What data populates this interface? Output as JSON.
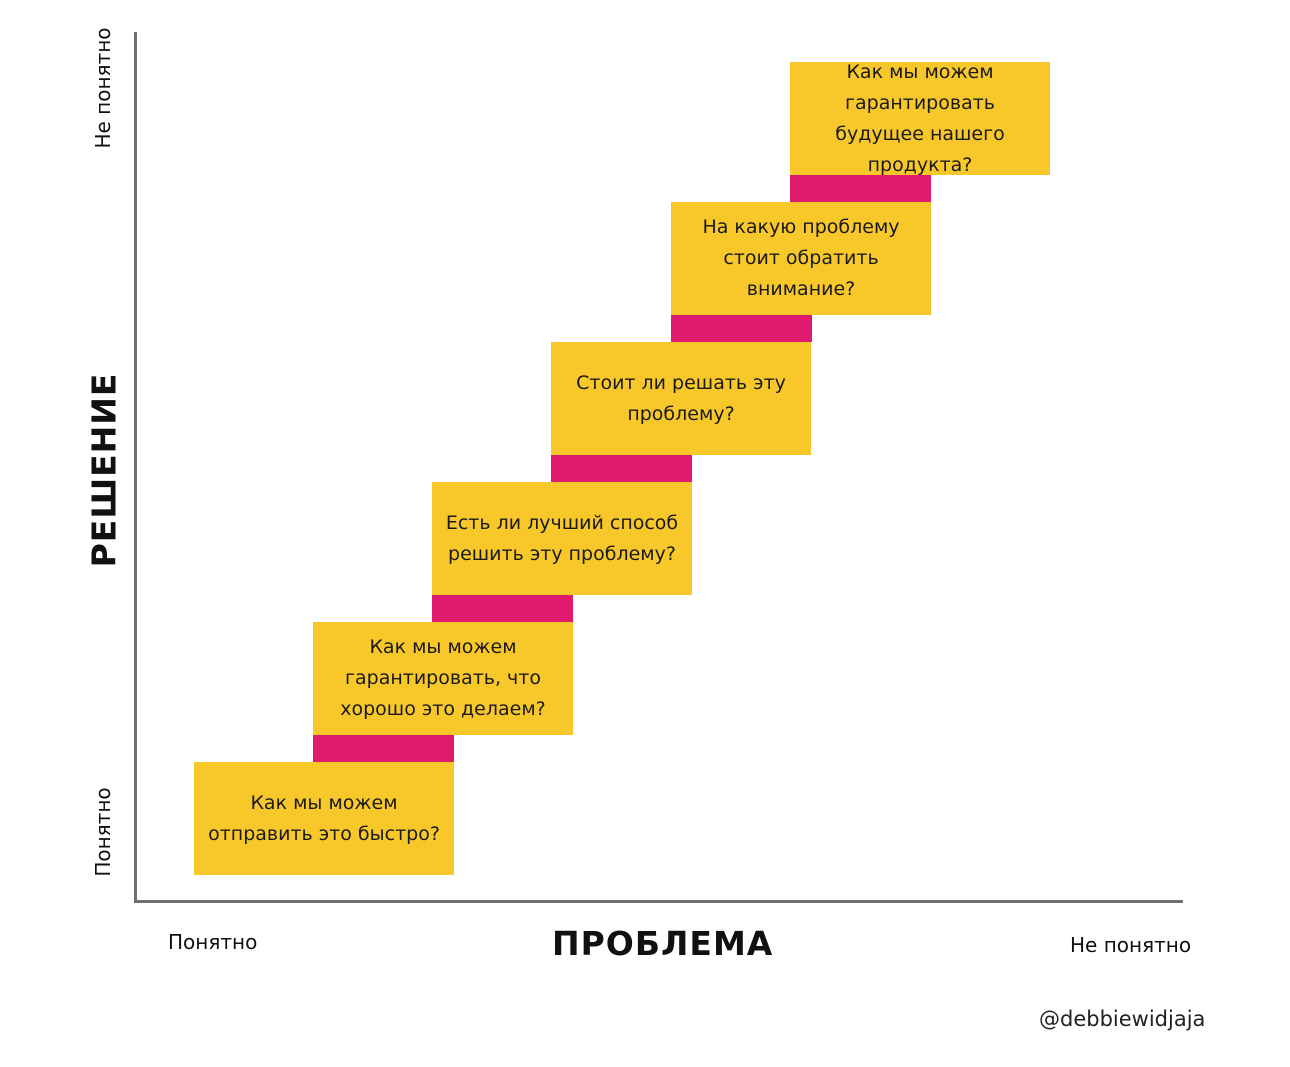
{
  "axes": {
    "y_title": "РЕШЕНИЕ",
    "y_high": "Не понятно",
    "y_low": "Понятно",
    "x_title": "ПРОБЛЕМА",
    "x_low": "Понятно",
    "x_high": "Не понятно"
  },
  "steps": [
    {
      "text": "Как мы можем отправить это быстро?"
    },
    {
      "text": "Как мы можем гарантировать, что хорошо это делаем?"
    },
    {
      "text": "Есть ли лучший способ решить эту проблему?"
    },
    {
      "text": "Стоит ли решать эту проблему?"
    },
    {
      "text": "На какую проблему стоит обратить внимание?"
    },
    {
      "text": "Как мы можем гарантировать будущее нашего продукта?"
    }
  ],
  "colors": {
    "step_fill": "#f8c82a",
    "riser_fill": "#e01b6f",
    "axis": "#6f6f6f"
  },
  "credit": "@debbiewidjaja"
}
